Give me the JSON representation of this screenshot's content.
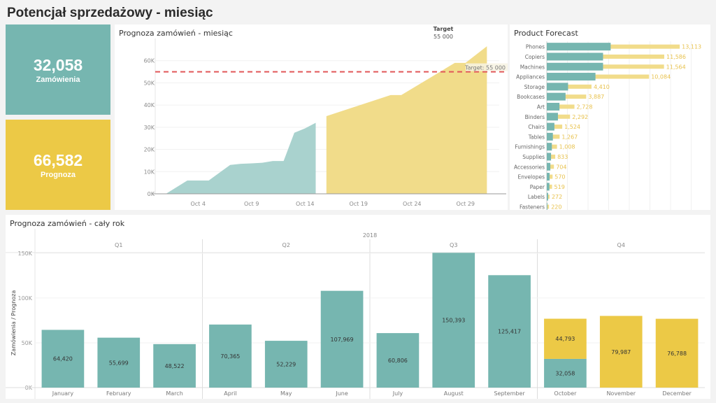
{
  "page_title": "Potencjał sprzedażowy - miesiąc",
  "kpis": {
    "orders": {
      "value": "32,058",
      "label": "Zamówienia",
      "color": "#76b6b0"
    },
    "forecast": {
      "value": "66,582",
      "label": "Prognoza",
      "color": "#ecc946"
    }
  },
  "colors": {
    "actual": "#76b6b0",
    "actual_area": "#a9d2ce",
    "forecast": "#ecc946",
    "forecast_area": "#f1dc8a",
    "target": "#e15759"
  },
  "chart_data": [
    {
      "type": "area",
      "title": "Prognoza zamówień - miesiąc",
      "xlabel": "",
      "ylabel": "",
      "ylim": [
        0,
        70000
      ],
      "yticks": [
        0,
        10000,
        20000,
        30000,
        40000,
        50000,
        60000
      ],
      "ytick_labels": [
        "0K",
        "10K",
        "20K",
        "30K",
        "40K",
        "50K",
        "60K"
      ],
      "xlim_days": [
        0,
        31.5
      ],
      "xticks": [
        4,
        9,
        14,
        19,
        24,
        29
      ],
      "xtick_labels": [
        "Oct 4",
        "Oct 9",
        "Oct 14",
        "Oct 19",
        "Oct 24",
        "Oct 29"
      ],
      "grid": true,
      "series": [
        {
          "name": "Zamówienia",
          "x": [
            1,
            3,
            5,
            7,
            8,
            9,
            10,
            11,
            12,
            13,
            14,
            15
          ],
          "values": [
            0,
            6000,
            6000,
            13000,
            13500,
            13700,
            14000,
            14800,
            14800,
            27500,
            29500,
            32000
          ]
        },
        {
          "name": "Prognoza",
          "x": [
            16,
            22,
            23,
            28,
            29,
            31
          ],
          "values": [
            35000,
            44500,
            44500,
            59000,
            59000,
            66500
          ]
        }
      ],
      "reference_line": {
        "value": 55000,
        "label": "Target: 55 000",
        "header_title": "Target",
        "header_value": "55 000"
      }
    },
    {
      "type": "bar",
      "title": "Product Forecast",
      "orientation": "horizontal",
      "categories": [
        "Phones",
        "Copiers",
        "Machines",
        "Appliances",
        "Storage",
        "Bookcases",
        "Art",
        "Binders",
        "Chairs",
        "Tables",
        "Furnishings",
        "Supplies",
        "Accessories",
        "Envelopes",
        "Paper",
        "Labels",
        "Fasteners"
      ],
      "series": [
        {
          "name": "Zamówienia",
          "values": [
            6300,
            5550,
            5550,
            4800,
            2100,
            1850,
            1250,
            1100,
            750,
            600,
            500,
            420,
            350,
            280,
            260,
            130,
            60
          ]
        },
        {
          "name": "Prognoza",
          "values": [
            13113,
            11586,
            11564,
            10084,
            4410,
            3887,
            2728,
            2292,
            1524,
            1267,
            1008,
            833,
            704,
            570,
            519,
            272,
            220
          ]
        }
      ],
      "value_labels": [
        "13,113",
        "11,586",
        "11,564",
        "10,084",
        "4,410",
        "3,887",
        "2,728",
        "2,292",
        "1,524",
        "1,267",
        "1,008",
        "833",
        "704",
        "570",
        "519",
        "272",
        "220"
      ],
      "xlim": [
        0,
        16000
      ],
      "grid": true
    },
    {
      "type": "bar",
      "title": "Prognoza zamówień - cały rok",
      "stacked": true,
      "year_label": "2018",
      "quarters": [
        "Q1",
        "Q2",
        "Q3",
        "Q4"
      ],
      "categories": [
        "January",
        "February",
        "March",
        "April",
        "May",
        "June",
        "July",
        "August",
        "September",
        "October",
        "November",
        "December"
      ],
      "series": [
        {
          "name": "Zamówienia",
          "values": [
            64420,
            55699,
            48522,
            70365,
            52229,
            107969,
            60806,
            150393,
            125417,
            32058,
            0,
            0
          ]
        },
        {
          "name": "Prognoza",
          "values": [
            0,
            0,
            0,
            0,
            0,
            0,
            0,
            0,
            0,
            44793,
            79987,
            76788
          ]
        }
      ],
      "labels": {
        "Zamówienia": [
          "64,420",
          "55,699",
          "48,522",
          "70,365",
          "52,229",
          "107,969",
          "60,806",
          "150,393",
          "125,417",
          "32,058",
          "",
          ""
        ],
        "Prognoza": [
          "",
          "",
          "",
          "",
          "",
          "",
          "",
          "",
          "",
          "44,793",
          "79,987",
          "76,788"
        ]
      },
      "ylabel": "Zamówienia / Prognoza",
      "ylim": [
        0,
        160000
      ],
      "yticks": [
        0,
        50000,
        100000,
        150000
      ],
      "ytick_labels": [
        "0K",
        "50K",
        "100K",
        "150K"
      ],
      "grid": true
    }
  ]
}
